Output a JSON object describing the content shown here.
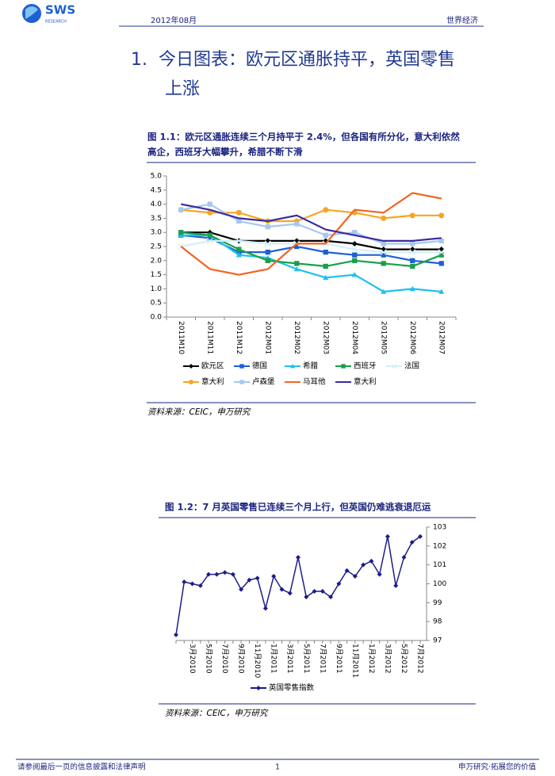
{
  "header": {
    "logo": "SWS",
    "logo_sub": "RESEARCH",
    "date": "2012年08月",
    "section": "世界经济"
  },
  "title": {
    "number": "1.",
    "line1": "今日图表：欧元区通胀持平，英国零售",
    "line2": "上涨"
  },
  "figures": [
    {
      "caption_line1": "图 1.1：欧元区通胀连续三个月持平于 2.4%，但各国有所分化，意大利依然",
      "caption_line2": "高企，西班牙大幅攀升，希腊不断下滑",
      "source": "资料来源：CEIC，申万研究"
    },
    {
      "caption_line1": "图 1.2：7 月英国零售已连续三个月上行，但英国仍难逃衰退厄运",
      "source": "资料来源：CEIC，申万研究"
    }
  ],
  "footer": {
    "left": "请参阅最后一页的信息披露和法律声明",
    "page": "1",
    "right": "申万研究·拓展您的价值"
  },
  "chart_data": [
    {
      "type": "line",
      "categories": [
        "2011M10",
        "2011M11",
        "2011M12",
        "2012M01",
        "2012M02",
        "2012M03",
        "2012M04",
        "2012M05",
        "2012M06",
        "2012M07"
      ],
      "ylim": [
        0,
        5
      ],
      "yticks": [
        {
          "value": 0,
          "label": "0.0"
        },
        {
          "value": 0.5,
          "label": "0.5"
        },
        {
          "value": 1,
          "label": "1.0"
        },
        {
          "value": 1.5,
          "label": "1.5"
        },
        {
          "value": 2,
          "label": "2.0"
        },
        {
          "value": 2.5,
          "label": "2.5"
        },
        {
          "value": 3,
          "label": "3.0"
        },
        {
          "value": 3.5,
          "label": "3.5"
        },
        {
          "value": 4,
          "label": "4.0"
        },
        {
          "value": 4.5,
          "label": "4.5"
        },
        {
          "value": 5,
          "label": "5.0"
        }
      ],
      "y_axis_side": "left",
      "grid": false,
      "legend": "bottom",
      "series": [
        {
          "name": "欧元区",
          "color": "#000000",
          "marker": "diamond",
          "values": [
            3.0,
            3.0,
            2.7,
            2.7,
            2.7,
            2.7,
            2.6,
            2.4,
            2.4,
            2.4
          ]
        },
        {
          "name": "德国",
          "color": "#1f5fd6",
          "marker": "square",
          "values": [
            2.9,
            2.8,
            2.3,
            2.3,
            2.5,
            2.3,
            2.2,
            2.2,
            2.0,
            1.9
          ]
        },
        {
          "name": "希腊",
          "color": "#1ec0f0",
          "marker": "triangle",
          "values": [
            2.9,
            2.9,
            2.2,
            2.1,
            1.7,
            1.4,
            1.5,
            0.9,
            1.0,
            0.9
          ]
        },
        {
          "name": "西班牙",
          "color": "#17a04a",
          "marker": "square",
          "values": [
            3.0,
            2.9,
            2.4,
            2.0,
            1.9,
            1.8,
            2.0,
            1.9,
            1.8,
            2.2
          ]
        },
        {
          "name": "法国",
          "color": "#d2f0f6",
          "marker": "cross",
          "values": [
            2.5,
            2.7,
            2.7,
            2.6,
            2.6,
            2.6,
            2.4,
            2.3,
            2.3,
            2.3
          ]
        },
        {
          "name": "意大利",
          "color": "#f5a623",
          "marker": "circle",
          "values": [
            3.8,
            3.7,
            3.7,
            3.4,
            3.4,
            3.8,
            3.7,
            3.5,
            3.6,
            3.6
          ]
        },
        {
          "name": "卢森堡",
          "color": "#a6c8f0",
          "marker": "square",
          "values": [
            3.8,
            4.0,
            3.4,
            3.2,
            3.3,
            2.9,
            3.0,
            2.6,
            2.6,
            2.7
          ]
        },
        {
          "name": "马耳他",
          "color": "#f26522",
          "marker": "none",
          "values": [
            2.5,
            1.7,
            1.5,
            1.7,
            2.6,
            2.6,
            3.8,
            3.7,
            4.4,
            4.2
          ]
        },
        {
          "name": "意大利",
          "color": "#3a2aa0",
          "marker": "none",
          "values": [
            4.0,
            3.8,
            3.5,
            3.4,
            3.6,
            3.1,
            2.9,
            2.7,
            2.7,
            2.8
          ]
        }
      ]
    },
    {
      "type": "line",
      "categories": [
        null,
        null,
        "3月2010",
        null,
        "5月2010",
        null,
        "7月2010",
        null,
        "9月2010",
        null,
        "11月2010",
        null,
        "1月2011",
        null,
        "3月2011",
        null,
        "5月2011",
        null,
        "7月2011",
        null,
        "9月2011",
        null,
        "11月2011",
        null,
        "1月2012",
        null,
        "3月2012",
        null,
        "5月2012",
        null,
        "7月2012"
      ],
      "ylim": [
        97,
        103
      ],
      "yticks": [
        97,
        98,
        99,
        100,
        101,
        102,
        103
      ],
      "y_axis_side": "right",
      "grid": false,
      "legend": "bottom",
      "series": [
        {
          "name": "英国零售指数",
          "color": "#1c1c8c",
          "marker": "diamond",
          "values": [
            97.3,
            100.1,
            100.0,
            99.9,
            100.5,
            100.5,
            100.6,
            100.5,
            99.7,
            100.2,
            100.3,
            98.7,
            100.4,
            99.7,
            99.5,
            101.4,
            99.3,
            99.6,
            99.6,
            99.3,
            100.0,
            100.7,
            100.4,
            101.0,
            101.2,
            100.5,
            102.5,
            99.9,
            101.4,
            102.2,
            102.5
          ]
        }
      ]
    }
  ]
}
